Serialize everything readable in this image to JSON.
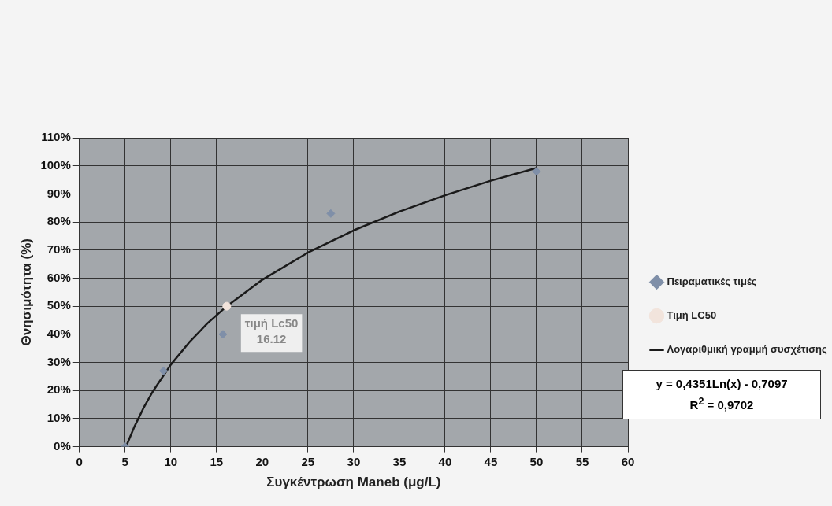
{
  "chart_data": {
    "type": "scatter",
    "xlabel": "Συγκέντρωση Maneb (μg/L)",
    "ylabel": "Θνησιμότητα (%)",
    "series": [
      {
        "name": "Πειραματικές τιμές",
        "type": "scatter",
        "color": "#7f8fa8",
        "marker": "diamond",
        "x": [
          5,
          9.2,
          15.7,
          27.5,
          50
        ],
        "values": [
          0,
          27,
          40,
          83,
          98
        ]
      },
      {
        "name": "Τιμή LC50",
        "type": "scatter",
        "color": "#f2e4dc",
        "marker": "circle",
        "x": [
          16.12
        ],
        "values": [
          50
        ]
      },
      {
        "name": "Λογαριθμική γραμμή συσχέτισης",
        "type": "line",
        "color": "#1a1a1a",
        "marker": "none",
        "line_style": "solid",
        "x": [
          5.1,
          5.2,
          6,
          7,
          8,
          10,
          12,
          14,
          16.12,
          20,
          25,
          30,
          35,
          40,
          45,
          50
        ],
        "values": [
          0,
          0.8,
          7.0,
          13.7,
          19.5,
          29.2,
          37.1,
          43.9,
          50.0,
          59.4,
          69.1,
          77.0,
          83.7,
          89.5,
          94.7,
          99.2
        ]
      }
    ],
    "xlim": [
      0,
      60
    ],
    "xticks": [
      0,
      5,
      10,
      15,
      20,
      25,
      30,
      35,
      40,
      45,
      50,
      55,
      60
    ],
    "ylim": [
      0,
      110
    ],
    "yticks": [
      {
        "value": 0,
        "label": "0%"
      },
      {
        "value": 10,
        "label": "10%"
      },
      {
        "value": 20,
        "label": "20%"
      },
      {
        "value": 30,
        "label": "30%"
      },
      {
        "value": 40,
        "label": "40%"
      },
      {
        "value": 50,
        "label": "50%"
      },
      {
        "value": 60,
        "label": "60%"
      },
      {
        "value": 70,
        "label": "70%"
      },
      {
        "value": 80,
        "label": "80%"
      },
      {
        "value": 90,
        "label": "90%"
      },
      {
        "value": 100,
        "label": "100%"
      },
      {
        "value": 110,
        "label": "110%"
      }
    ],
    "grid": true,
    "legend": "right",
    "annotations": [
      {
        "text": "τιμή Lc50\n16.12",
        "x": 16.12,
        "y": 50
      },
      "y = 0,4351Ln(x) - 0,7097\nR$^{2}$ = 0,9702"
    ]
  }
}
